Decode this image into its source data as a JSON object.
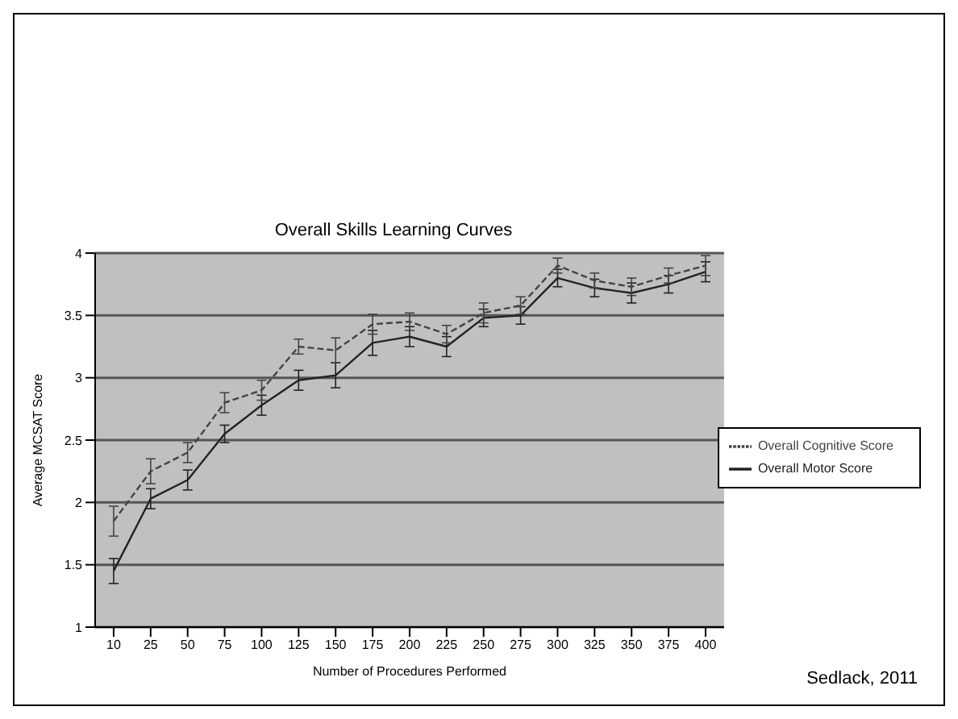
{
  "chart_data": {
    "type": "line",
    "title": "Overall Skills Learning Curves",
    "xlabel": "Number of Procedures Performed",
    "ylabel": "Average MCSAT Score",
    "categories": [
      "10",
      "25",
      "50",
      "75",
      "100",
      "125",
      "150",
      "175",
      "200",
      "225",
      "250",
      "275",
      "300",
      "325",
      "350",
      "375",
      "400"
    ],
    "series": [
      {
        "name": "Overall Motor Score",
        "color": "#222222",
        "line_style": "solid",
        "values": [
          1.45,
          2.03,
          2.18,
          2.55,
          2.78,
          2.98,
          3.02,
          3.28,
          3.33,
          3.25,
          3.48,
          3.5,
          3.8,
          3.72,
          3.68,
          3.75,
          3.85
        ],
        "errors": [
          0.1,
          0.08,
          0.08,
          0.07,
          0.08,
          0.08,
          0.1,
          0.1,
          0.08,
          0.08,
          0.07,
          0.07,
          0.07,
          0.07,
          0.08,
          0.07,
          0.08
        ]
      },
      {
        "name": "Overall Cognitive Score",
        "color": "#444444",
        "line_style": "dashed",
        "values": [
          1.85,
          2.25,
          2.4,
          2.8,
          2.9,
          3.25,
          3.22,
          3.43,
          3.45,
          3.35,
          3.52,
          3.58,
          3.9,
          3.78,
          3.73,
          3.82,
          3.9
        ],
        "errors": [
          0.12,
          0.1,
          0.08,
          0.08,
          0.08,
          0.06,
          0.1,
          0.08,
          0.07,
          0.07,
          0.08,
          0.07,
          0.06,
          0.06,
          0.07,
          0.06,
          0.08
        ]
      }
    ],
    "ylim": [
      1,
      4
    ],
    "yticks": [
      1,
      1.5,
      2,
      2.5,
      3,
      3.5,
      4
    ],
    "grid": "y",
    "legend": "right",
    "marker": "none",
    "annotations": [
      "Sedlack, 2011"
    ]
  }
}
